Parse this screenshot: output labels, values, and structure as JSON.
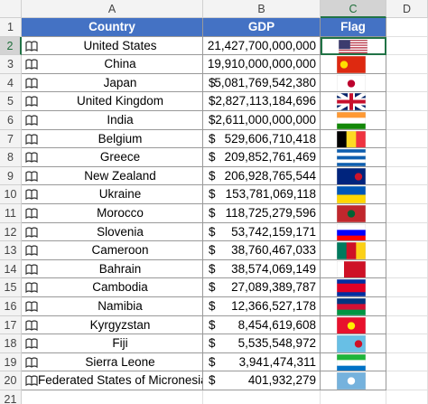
{
  "columns": [
    "A",
    "B",
    "C",
    "D"
  ],
  "row_numbers": [
    1,
    2,
    3,
    4,
    5,
    6,
    7,
    8,
    9,
    10,
    11,
    12,
    13,
    14,
    15,
    16,
    17,
    18,
    19,
    20,
    21
  ],
  "table": {
    "header": [
      "Country",
      "GDP",
      "Flag"
    ],
    "rows": [
      {
        "country": "United States",
        "currency": "$",
        "gdp": "21,427,700,000,000"
      },
      {
        "country": "China",
        "currency": "$",
        "gdp": "19,910,000,000,000"
      },
      {
        "country": "Japan",
        "currency": "$",
        "gdp": "5,081,769,542,380"
      },
      {
        "country": "United Kingdom",
        "currency": "$",
        "gdp": "2,827,113,184,696"
      },
      {
        "country": "India",
        "currency": "$",
        "gdp": "2,611,000,000,000"
      },
      {
        "country": "Belgium",
        "currency": "$",
        "gdp": "529,606,710,418"
      },
      {
        "country": "Greece",
        "currency": "$",
        "gdp": "209,852,761,469"
      },
      {
        "country": "New Zealand",
        "currency": "$",
        "gdp": "206,928,765,544"
      },
      {
        "country": "Ukraine",
        "currency": "$",
        "gdp": "153,781,069,118"
      },
      {
        "country": "Morocco",
        "currency": "$",
        "gdp": "118,725,279,596"
      },
      {
        "country": "Slovenia",
        "currency": "$",
        "gdp": "53,742,159,171"
      },
      {
        "country": "Cameroon",
        "currency": "$",
        "gdp": "38,760,467,033"
      },
      {
        "country": "Bahrain",
        "currency": "$",
        "gdp": "38,574,069,149"
      },
      {
        "country": "Cambodia",
        "currency": "$",
        "gdp": "27,089,389,787"
      },
      {
        "country": "Namibia",
        "currency": "$",
        "gdp": "12,366,527,178"
      },
      {
        "country": "Kyrgyzstan",
        "currency": "$",
        "gdp": "8,454,619,608"
      },
      {
        "country": "Fiji",
        "currency": "$",
        "gdp": "5,535,548,972"
      },
      {
        "country": "Sierra Leone",
        "currency": "$",
        "gdp": "3,941,474,311"
      },
      {
        "country": "Federated States of Micronesia",
        "currency": "$",
        "gdp": "401,932,279"
      }
    ]
  }
}
